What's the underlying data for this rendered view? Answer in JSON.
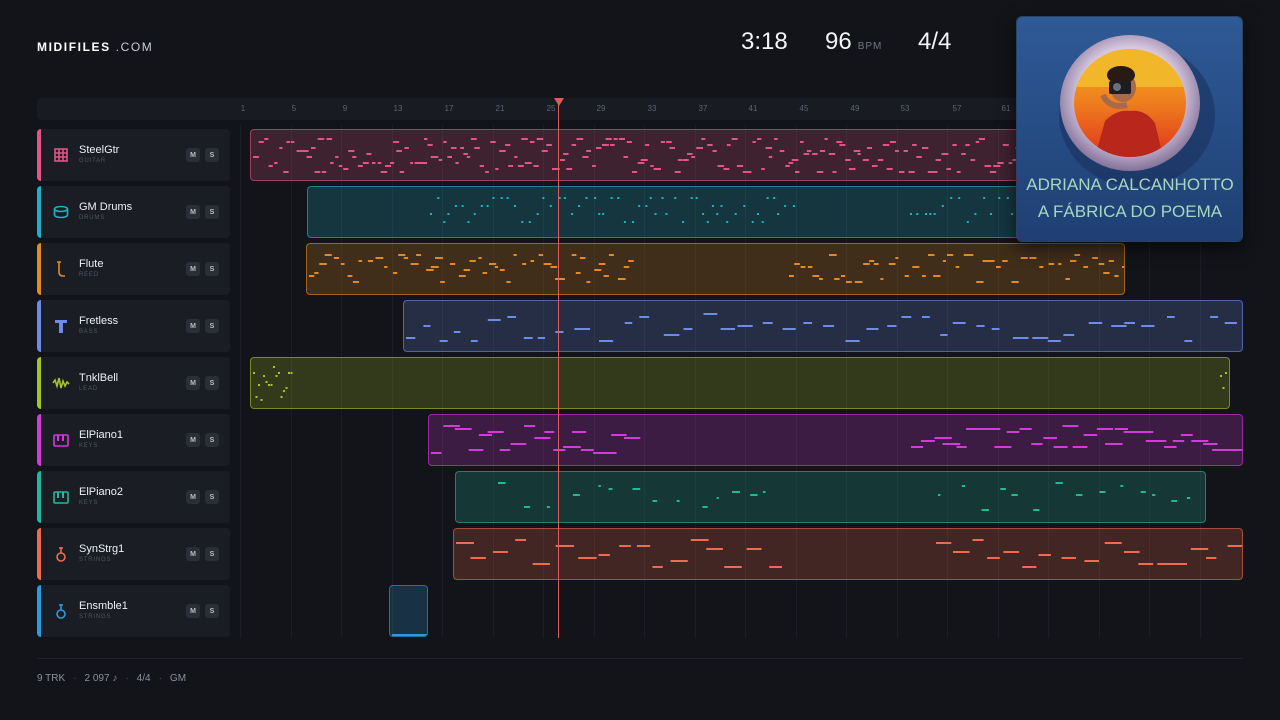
{
  "header": {
    "logo_main": "MIDIFILES",
    "logo_suffix": ".COM",
    "time": "3:18",
    "tempo": "96",
    "tempo_unit": "BPM",
    "signature": "4/4"
  },
  "ruler": {
    "ticks": [
      "1",
      "5",
      "9",
      "13",
      "17",
      "21",
      "25",
      "29",
      "33",
      "37",
      "41",
      "45",
      "49",
      "53",
      "57",
      "61"
    ]
  },
  "tracks": [
    {
      "name": "SteelGtr",
      "category": "GUITAR",
      "color": "#e05585",
      "icon": "guitar-fretboard-icon",
      "mute": "M",
      "solo": "S"
    },
    {
      "name": "GM Drums",
      "category": "DRUMS",
      "color": "#1fb0c7",
      "icon": "drum-icon",
      "mute": "M",
      "solo": "S"
    },
    {
      "name": "Flute",
      "category": "REED",
      "color": "#e58a22",
      "icon": "flute-icon",
      "mute": "M",
      "solo": "S"
    },
    {
      "name": "Fretless",
      "category": "BASS",
      "color": "#6f8be8",
      "icon": "bass-icon",
      "mute": "M",
      "solo": "S"
    },
    {
      "name": "TnklBell",
      "category": "LEAD",
      "color": "#a8c22a",
      "icon": "waveform-icon",
      "mute": "M",
      "solo": "S"
    },
    {
      "name": "ElPiano1",
      "category": "KEYS",
      "color": "#d23ad9",
      "icon": "piano-icon",
      "mute": "M",
      "solo": "S"
    },
    {
      "name": "ElPiano2",
      "category": "KEYS",
      "color": "#22b89a",
      "icon": "piano-icon",
      "mute": "M",
      "solo": "S"
    },
    {
      "name": "SynStrg1",
      "category": "STRINGS",
      "color": "#ef6a4f",
      "icon": "violin-icon",
      "mute": "M",
      "solo": "S"
    },
    {
      "name": "Ensmble1",
      "category": "STRINGS",
      "color": "#2c9ae0",
      "icon": "violin-icon",
      "mute": "M",
      "solo": "S"
    }
  ],
  "album": {
    "artist": "ADRIANA CALCANHOTTO",
    "title": "A FÁBRICA DO POEMA"
  },
  "footer": {
    "tracks": "9 TRK",
    "notes": "2 097 ♪",
    "signature": "4/4",
    "standard": "GM"
  }
}
